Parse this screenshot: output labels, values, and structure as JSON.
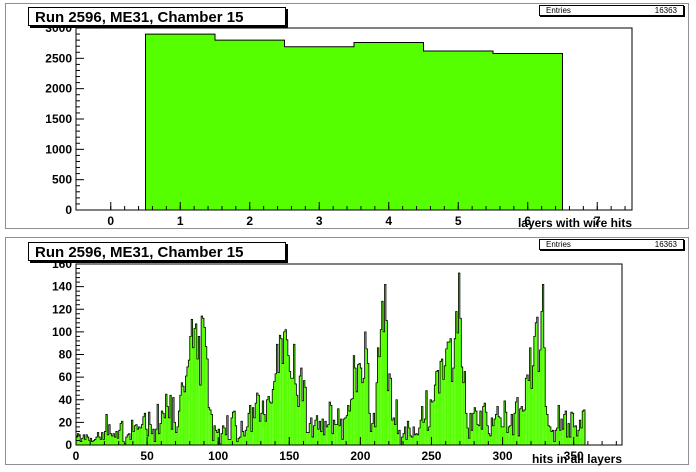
{
  "chart_data": [
    {
      "type": "bar",
      "title": "Run 2596, ME31, Chamber 15",
      "stats": {
        "label": "Entries",
        "value": "16363"
      },
      "xlabel": "layers with wire hits",
      "ylabel": "",
      "xlim": [
        -0.5,
        7.5
      ],
      "ylim": [
        0,
        3000
      ],
      "x_ticks": [
        0,
        1,
        2,
        3,
        4,
        5,
        6,
        7
      ],
      "y_ticks": [
        0,
        500,
        1000,
        1500,
        2000,
        2500,
        3000
      ],
      "bin_edges": [
        0.5,
        1.5,
        2.5,
        3.5,
        4.5,
        5.5,
        6.5
      ],
      "values": [
        2900,
        2800,
        2690,
        2760,
        2620,
        2580
      ],
      "fill_color": "#55ff00"
    },
    {
      "type": "bar",
      "title": "Run 2596, ME31, Chamber 15",
      "stats": {
        "label": "Entries",
        "value": "16363"
      },
      "xlabel": "hits in all layers",
      "ylabel": "",
      "xlim": [
        0,
        384
      ],
      "ylim": [
        0,
        160
      ],
      "x_ticks": [
        0,
        50,
        100,
        150,
        200,
        250,
        300,
        350
      ],
      "y_ticks": [
        0,
        20,
        40,
        60,
        80,
        100,
        120,
        140,
        160
      ],
      "bin_start": 0,
      "bin_width": 1,
      "values": [
        7,
        10,
        9,
        3,
        6,
        9,
        5,
        9,
        7,
        4,
        6,
        3,
        4,
        5,
        7,
        11,
        7,
        5,
        11,
        5,
        12,
        27,
        9,
        18,
        10,
        8,
        10,
        7,
        12,
        6,
        13,
        19,
        21,
        3,
        1,
        7,
        9,
        10,
        5,
        22,
        12,
        17,
        18,
        14,
        16,
        15,
        18,
        25,
        28,
        14,
        8,
        29,
        18,
        10,
        14,
        3,
        14,
        36,
        10,
        19,
        30,
        28,
        24,
        45,
        34,
        24,
        44,
        14,
        42,
        20,
        11,
        16,
        30,
        44,
        55,
        52,
        47,
        61,
        69,
        75,
        96,
        111,
        86,
        103,
        107,
        76,
        96,
        53,
        114,
        112,
        104,
        87,
        76,
        33,
        31,
        27,
        4,
        17,
        13,
        11,
        14,
        1,
        10,
        17,
        15,
        9,
        26,
        5,
        5,
        24,
        29,
        30,
        17,
        3,
        6,
        7,
        21,
        12,
        8,
        13,
        16,
        28,
        35,
        12,
        33,
        24,
        37,
        46,
        44,
        21,
        28,
        39,
        27,
        21,
        40,
        43,
        38,
        37,
        49,
        56,
        63,
        89,
        64,
        97,
        94,
        72,
        100,
        102,
        93,
        79,
        65,
        59,
        59,
        89,
        54,
        44,
        34,
        61,
        68,
        39,
        57,
        51,
        11,
        11,
        19,
        24,
        7,
        17,
        22,
        26,
        14,
        21,
        12,
        23,
        9,
        21,
        16,
        18,
        38,
        35,
        10,
        22,
        18,
        18,
        32,
        17,
        23,
        5,
        23,
        24,
        26,
        35,
        30,
        40,
        41,
        79,
        68,
        47,
        71,
        72,
        68,
        55,
        59,
        100,
        85,
        72,
        28,
        12,
        19,
        28,
        16,
        55,
        86,
        78,
        102,
        127,
        100,
        142,
        110,
        48,
        63,
        59,
        22,
        24,
        18,
        40,
        10,
        13,
        0,
        7,
        10,
        16,
        5,
        21,
        15,
        8,
        7,
        16,
        9,
        10,
        9,
        15,
        22,
        34,
        20,
        23,
        48,
        13,
        16,
        40,
        38,
        39,
        53,
        65,
        66,
        46,
        74,
        76,
        58,
        70,
        85,
        91,
        91,
        94,
        56,
        68,
        94,
        118,
        99,
        152,
        112,
        69,
        55,
        65,
        28,
        15,
        6,
        28,
        13,
        28,
        33,
        30,
        18,
        17,
        30,
        14,
        34,
        37,
        29,
        17,
        10,
        8,
        24,
        17,
        23,
        27,
        34,
        25,
        24,
        16,
        16,
        39,
        29,
        11,
        16,
        17,
        27,
        9,
        28,
        38,
        42,
        8,
        32,
        34,
        30,
        31,
        59,
        62,
        57,
        86,
        50,
        70,
        96,
        108,
        113,
        65,
        84,
        118,
        142,
        86,
        34,
        27,
        17,
        16,
        12,
        13,
        3,
        13,
        15,
        35,
        13,
        23,
        14,
        27,
        30,
        7,
        19,
        7,
        29,
        28,
        16,
        17,
        8,
        13,
        22,
        15,
        30,
        31
      ],
      "fill_color": "#55ff00"
    }
  ]
}
